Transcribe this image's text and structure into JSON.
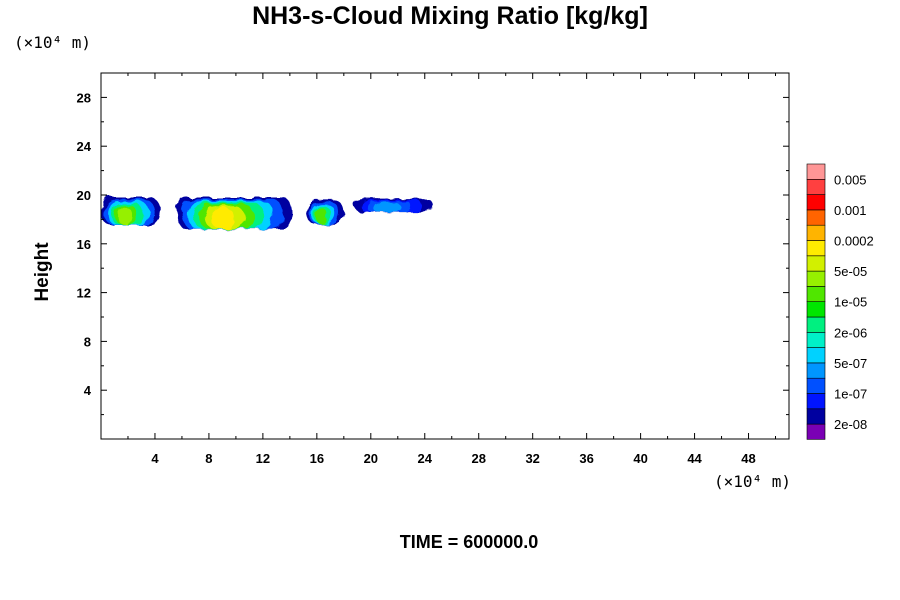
{
  "chart_data": {
    "type": "heatmap",
    "title": "NH3-s-Cloud Mixing Ratio [kg/kg]",
    "ylabel": "Height",
    "x_unit": "(×10⁴ m)",
    "y_unit": "(×10⁴ m)",
    "footer": "TIME = 600000.0",
    "xlim": [
      0,
      51
    ],
    "ylim": [
      0,
      30
    ],
    "xticks": [
      "4",
      "8",
      "12",
      "16",
      "20",
      "24",
      "28",
      "32",
      "36",
      "40",
      "44",
      "48"
    ],
    "yticks": [
      "4",
      "8",
      "12",
      "16",
      "20",
      "24",
      "28"
    ],
    "colorbar": {
      "colors": [
        "#7a00b4",
        "#0000a0",
        "#0014ff",
        "#0050ff",
        "#0096ff",
        "#00d2ff",
        "#00f0c8",
        "#00f080",
        "#00e600",
        "#50e600",
        "#96f000",
        "#d2f000",
        "#ffeb00",
        "#ffb400",
        "#ff6400",
        "#ff0000",
        "#ff4040",
        "#ff9696"
      ],
      "labels": [
        "2e-08",
        "1e-07",
        "5e-07",
        "2e-06",
        "1e-05",
        "5e-05",
        "0.0002",
        "0.001",
        "0.005"
      ]
    },
    "cloud_layers": [
      {
        "x": [
          0.0,
          4.4
        ],
        "y": [
          17.5,
          19.8
        ],
        "levels": [
          "#0000a0",
          "#0050ff",
          "#00d2ff",
          "#00f080",
          "#50e600",
          "#96f000"
        ]
      },
      {
        "x": [
          5.6,
          14.2
        ],
        "y": [
          17.2,
          19.8
        ],
        "levels": [
          "#0000a0",
          "#0050ff",
          "#00d2ff",
          "#00f080",
          "#50e600",
          "#d2f000",
          "#ffeb00"
        ]
      },
      {
        "x": [
          15.2,
          18.0
        ],
        "y": [
          17.6,
          19.6
        ],
        "levels": [
          "#0000a0",
          "#0050ff",
          "#00d2ff",
          "#00f080",
          "#50e600"
        ]
      },
      {
        "x": [
          18.8,
          24.6
        ],
        "y": [
          18.6,
          19.7
        ],
        "levels": [
          "#0000a0",
          "#0014ff",
          "#0050ff",
          "#0096ff"
        ]
      }
    ]
  }
}
